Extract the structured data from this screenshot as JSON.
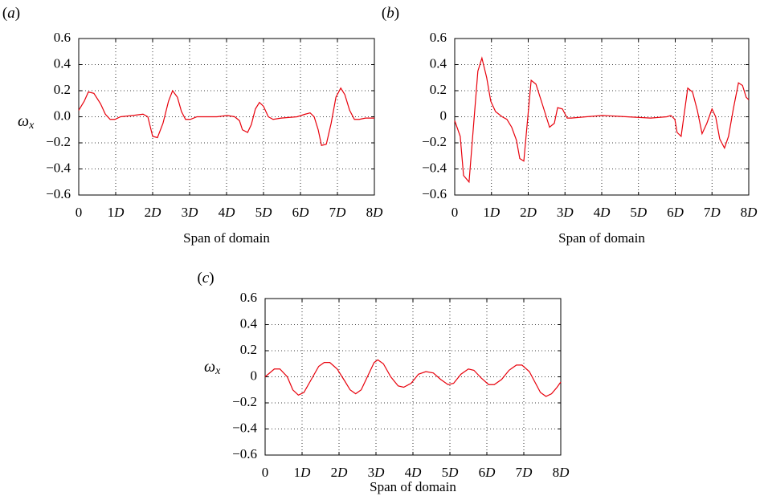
{
  "chart_data": [
    {
      "type": "line",
      "panel_label": "(a)",
      "ylabel": "ωx",
      "xlabel": "Span of domain",
      "x": [
        0,
        0.15,
        0.26,
        0.41,
        0.59,
        0.72,
        0.85,
        0.98,
        1.13,
        1.46,
        1.74,
        1.87,
        2.0,
        2.13,
        2.28,
        2.43,
        2.54,
        2.67,
        2.78,
        2.89,
        3.02,
        3.2,
        3.74,
        4.02,
        4.22,
        4.35,
        4.43,
        4.57,
        4.67,
        4.78,
        4.89,
        5.0,
        5.13,
        5.26,
        5.48,
        5.91,
        6.13,
        6.26,
        6.37,
        6.48,
        6.57,
        6.7,
        6.83,
        6.96,
        7.09,
        7.2,
        7.33,
        7.46,
        7.59,
        7.76,
        8.0
      ],
      "values": [
        0.05,
        0.12,
        0.19,
        0.18,
        0.1,
        0.02,
        -0.02,
        -0.02,
        0.0,
        0.01,
        0.02,
        0.0,
        -0.15,
        -0.16,
        -0.05,
        0.12,
        0.2,
        0.15,
        0.04,
        -0.02,
        -0.02,
        0.0,
        0.0,
        0.01,
        0.0,
        -0.03,
        -0.1,
        -0.12,
        -0.06,
        0.06,
        0.11,
        0.08,
        0.0,
        -0.02,
        -0.01,
        0.0,
        0.02,
        0.03,
        0.0,
        -0.1,
        -0.22,
        -0.21,
        -0.05,
        0.15,
        0.22,
        0.17,
        0.05,
        -0.02,
        -0.02,
        -0.01,
        -0.01
      ],
      "color": "#e8000b",
      "grid": true,
      "xlim": [
        0,
        8
      ],
      "ylim": [
        -0.6,
        0.6
      ],
      "xticks": [
        0,
        {
          "value": 1,
          "label": "1D"
        },
        {
          "value": 2,
          "label": "2D"
        },
        {
          "value": 3,
          "label": "3D"
        },
        {
          "value": 4,
          "label": "4D"
        },
        {
          "value": 5,
          "label": "5D"
        },
        {
          "value": 6,
          "label": "6D"
        },
        {
          "value": 7,
          "label": "7D"
        },
        {
          "value": 8,
          "label": "8D"
        }
      ],
      "yticks": [
        {
          "value": -0.6,
          "label": "−0.6"
        },
        {
          "value": -0.4,
          "label": "−0.4"
        },
        {
          "value": -0.2,
          "label": "−0.2"
        },
        {
          "value": 0,
          "label": "0.0"
        },
        0.2,
        0.4,
        0.6
      ]
    },
    {
      "type": "line",
      "panel_label": "(b)",
      "xlabel": "Span of domain",
      "x": [
        0,
        0.15,
        0.24,
        0.39,
        0.63,
        0.74,
        0.87,
        0.98,
        1.11,
        1.29,
        1.42,
        1.55,
        1.68,
        1.77,
        1.88,
        2.08,
        2.21,
        2.38,
        2.58,
        2.71,
        2.8,
        2.93,
        3.06,
        3.17,
        3.58,
        4.02,
        4.68,
        5.33,
        5.77,
        5.88,
        5.99,
        6.05,
        6.16,
        6.34,
        6.47,
        6.6,
        6.73,
        6.86,
        7.0,
        7.1,
        7.21,
        7.34,
        7.45,
        7.58,
        7.72,
        7.83,
        7.93,
        8.0
      ],
      "values": [
        -0.03,
        -0.15,
        -0.45,
        -0.5,
        0.35,
        0.45,
        0.3,
        0.12,
        0.04,
        0.0,
        -0.02,
        -0.08,
        -0.18,
        -0.32,
        -0.34,
        0.28,
        0.25,
        0.1,
        -0.08,
        -0.05,
        0.07,
        0.06,
        -0.01,
        -0.01,
        0.0,
        0.01,
        0.0,
        -0.01,
        0.0,
        0.01,
        -0.02,
        -0.12,
        -0.15,
        0.22,
        0.19,
        0.05,
        -0.13,
        -0.05,
        0.06,
        0.0,
        -0.17,
        -0.24,
        -0.15,
        0.06,
        0.26,
        0.24,
        0.15,
        0.13
      ],
      "color": "#e8000b",
      "grid": true,
      "xlim": [
        0,
        8
      ],
      "ylim": [
        -0.6,
        0.6
      ],
      "xticks": [
        0,
        {
          "value": 1,
          "label": "1D"
        },
        {
          "value": 2,
          "label": "2D"
        },
        {
          "value": 3,
          "label": "3D"
        },
        {
          "value": 4,
          "label": "4D"
        },
        {
          "value": 5,
          "label": "5D"
        },
        {
          "value": 6,
          "label": "6D"
        },
        {
          "value": 7,
          "label": "7D"
        },
        {
          "value": 8,
          "label": "8D"
        }
      ],
      "yticks": [
        {
          "value": -0.6,
          "label": "−0.6"
        },
        {
          "value": -0.4,
          "label": "−0.4"
        },
        {
          "value": -0.2,
          "label": "−0.2"
        },
        0,
        0.2,
        0.4,
        0.6
      ]
    },
    {
      "type": "line",
      "panel_label": "(c)",
      "ylabel": "ωx",
      "xlabel": "Span of domain",
      "x": [
        0,
        0.25,
        0.4,
        0.6,
        0.75,
        0.9,
        1.05,
        1.25,
        1.45,
        1.6,
        1.75,
        1.95,
        2.15,
        2.3,
        2.45,
        2.6,
        2.8,
        2.95,
        3.05,
        3.2,
        3.4,
        3.6,
        3.75,
        3.95,
        4.15,
        4.35,
        4.55,
        4.75,
        4.95,
        5.1,
        5.3,
        5.5,
        5.65,
        5.85,
        6.05,
        6.2,
        6.4,
        6.6,
        6.8,
        6.95,
        7.15,
        7.3,
        7.45,
        7.6,
        7.75,
        7.9,
        8.0
      ],
      "values": [
        0.0,
        0.06,
        0.06,
        0.0,
        -0.1,
        -0.14,
        -0.12,
        -0.02,
        0.08,
        0.11,
        0.11,
        0.06,
        -0.03,
        -0.1,
        -0.13,
        -0.1,
        0.02,
        0.11,
        0.13,
        0.1,
        0.0,
        -0.07,
        -0.08,
        -0.05,
        0.02,
        0.04,
        0.03,
        -0.02,
        -0.06,
        -0.05,
        0.02,
        0.06,
        0.05,
        -0.01,
        -0.06,
        -0.06,
        -0.02,
        0.05,
        0.09,
        0.09,
        0.04,
        -0.04,
        -0.12,
        -0.15,
        -0.13,
        -0.08,
        -0.04
      ],
      "color": "#e8000b",
      "grid": true,
      "xlim": [
        0,
        8
      ],
      "ylim": [
        -0.6,
        0.6
      ],
      "xticks": [
        0,
        {
          "value": 1,
          "label": "1D"
        },
        {
          "value": 2,
          "label": "2D"
        },
        {
          "value": 3,
          "label": "3D"
        },
        {
          "value": 4,
          "label": "4D"
        },
        {
          "value": 5,
          "label": "5D"
        },
        {
          "value": 6,
          "label": "6D"
        },
        {
          "value": 7,
          "label": "7D"
        },
        {
          "value": 8,
          "label": "8D"
        }
      ],
      "yticks": [
        {
          "value": -0.6,
          "label": "−0.6"
        },
        {
          "value": -0.4,
          "label": "−0.4"
        },
        {
          "value": -0.2,
          "label": "−0.2"
        },
        0,
        0.2,
        0.4,
        0.6
      ]
    }
  ]
}
